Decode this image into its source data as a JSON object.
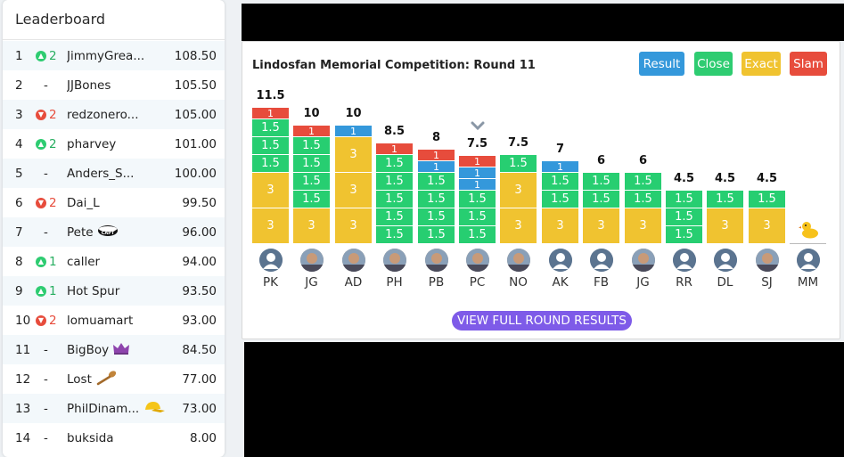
{
  "leaderboard": {
    "title": "Leaderboard",
    "rows": [
      {
        "rank": "1",
        "move": "up",
        "moveVal": "2",
        "name": "JimmyGrea...",
        "score": "108.50",
        "badge": ""
      },
      {
        "rank": "2",
        "move": "none",
        "moveVal": "-",
        "name": "JJBones",
        "score": "105.50",
        "badge": ""
      },
      {
        "rank": "3",
        "move": "down",
        "moveVal": "2",
        "name": "redzonero...",
        "score": "105.00",
        "badge": ""
      },
      {
        "rank": "4",
        "move": "up",
        "moveVal": "2",
        "name": "pharvey",
        "score": "101.00",
        "badge": ""
      },
      {
        "rank": "5",
        "move": "none",
        "moveVal": "-",
        "name": "Anders_S...",
        "score": "100.00",
        "badge": ""
      },
      {
        "rank": "6",
        "move": "down",
        "moveVal": "2",
        "name": "Dai_L",
        "score": "99.50",
        "badge": ""
      },
      {
        "rank": "7",
        "move": "none",
        "moveVal": "-",
        "name": "Pete",
        "score": "96.00",
        "badge": "captain-armband-icon"
      },
      {
        "rank": "8",
        "move": "up",
        "moveVal": "1",
        "name": "caller",
        "score": "94.00",
        "badge": ""
      },
      {
        "rank": "9",
        "move": "up",
        "moveVal": "1",
        "name": "Hot Spur",
        "score": "93.50",
        "badge": ""
      },
      {
        "rank": "10",
        "move": "down",
        "moveVal": "2",
        "name": "lomuamart",
        "score": "93.00",
        "badge": ""
      },
      {
        "rank": "11",
        "move": "none",
        "moveVal": "-",
        "name": "BigBoy",
        "score": "84.50",
        "badge": "crown-icon"
      },
      {
        "rank": "12",
        "move": "none",
        "moveVal": "-",
        "name": "Lost",
        "score": "77.00",
        "badge": "wooden-spoon-icon"
      },
      {
        "rank": "13",
        "move": "none",
        "moveVal": "-",
        "name": "PhilDinam...",
        "score": "73.00",
        "badge": "cap-icon"
      },
      {
        "rank": "14",
        "move": "none",
        "moveVal": "-",
        "name": "buksida",
        "score": "8.00",
        "badge": ""
      }
    ]
  },
  "round": {
    "title": "Lindosfan Memorial Competition: Round 11",
    "buttons": [
      {
        "label": "Result",
        "color": "#3498db"
      },
      {
        "label": "Close",
        "color": "#2ecc71"
      },
      {
        "label": "Exact",
        "color": "#f0c330"
      },
      {
        "label": "Slam",
        "color": "#e74c3c"
      }
    ],
    "colors": {
      "exact": "#f0c330",
      "close": "#27ce71",
      "result": "#3498db",
      "slam": "#e74c3c"
    },
    "players": [
      {
        "initials": "PK",
        "total": "11.5",
        "avatar": "default",
        "stack": [
          [
            "3",
            "exact"
          ],
          [
            "3",
            "exact"
          ],
          [
            "1.5",
            "close"
          ],
          [
            "1.5",
            "close"
          ],
          [
            "1.5",
            "close"
          ],
          [
            "1",
            "slam"
          ]
        ]
      },
      {
        "initials": "JG",
        "total": "10",
        "avatar": "photo",
        "stack": [
          [
            "3",
            "exact"
          ],
          [
            "1.5",
            "close"
          ],
          [
            "1.5",
            "close"
          ],
          [
            "1.5",
            "close"
          ],
          [
            "1.5",
            "close"
          ],
          [
            "1",
            "slam"
          ]
        ]
      },
      {
        "initials": "AD",
        "total": "10",
        "avatar": "photo",
        "stack": [
          [
            "3",
            "exact"
          ],
          [
            "3",
            "exact"
          ],
          [
            "3",
            "exact"
          ],
          [
            "1",
            "result"
          ]
        ]
      },
      {
        "initials": "PH",
        "total": "8.5",
        "avatar": "photo",
        "stack": [
          [
            "1.5",
            "close"
          ],
          [
            "1.5",
            "close"
          ],
          [
            "1.5",
            "close"
          ],
          [
            "1.5",
            "close"
          ],
          [
            "1.5",
            "close"
          ],
          [
            "1",
            "slam"
          ]
        ]
      },
      {
        "initials": "PB",
        "total": "8",
        "avatar": "photo",
        "stack": [
          [
            "1.5",
            "close"
          ],
          [
            "1.5",
            "close"
          ],
          [
            "1.5",
            "close"
          ],
          [
            "1.5",
            "close"
          ],
          [
            "1",
            "result"
          ],
          [
            "1",
            "slam"
          ]
        ]
      },
      {
        "initials": "PC",
        "total": "7.5",
        "avatar": "photo",
        "selected": true,
        "stack": [
          [
            "1.5",
            "close"
          ],
          [
            "1.5",
            "close"
          ],
          [
            "1.5",
            "close"
          ],
          [
            "1",
            "result"
          ],
          [
            "1",
            "result"
          ],
          [
            "1",
            "slam"
          ]
        ]
      },
      {
        "initials": "NO",
        "total": "7.5",
        "avatar": "photo",
        "stack": [
          [
            "3",
            "exact"
          ],
          [
            "3",
            "exact"
          ],
          [
            "1.5",
            "close"
          ]
        ]
      },
      {
        "initials": "AK",
        "total": "7",
        "avatar": "default",
        "stack": [
          [
            "3",
            "exact"
          ],
          [
            "1.5",
            "close"
          ],
          [
            "1.5",
            "close"
          ],
          [
            "1",
            "result"
          ]
        ]
      },
      {
        "initials": "FB",
        "total": "6",
        "avatar": "default",
        "stack": [
          [
            "3",
            "exact"
          ],
          [
            "1.5",
            "close"
          ],
          [
            "1.5",
            "close"
          ]
        ]
      },
      {
        "initials": "JG",
        "total": "6",
        "avatar": "photo",
        "stack": [
          [
            "3",
            "exact"
          ],
          [
            "1.5",
            "close"
          ],
          [
            "1.5",
            "close"
          ]
        ]
      },
      {
        "initials": "RR",
        "total": "4.5",
        "avatar": "default",
        "stack": [
          [
            "1.5",
            "close"
          ],
          [
            "1.5",
            "close"
          ],
          [
            "1.5",
            "close"
          ]
        ]
      },
      {
        "initials": "DL",
        "total": "4.5",
        "avatar": "default",
        "stack": [
          [
            "3",
            "exact"
          ],
          [
            "1.5",
            "close"
          ]
        ]
      },
      {
        "initials": "SJ",
        "total": "4.5",
        "avatar": "photo",
        "stack": [
          [
            "3",
            "exact"
          ],
          [
            "1.5",
            "close"
          ]
        ]
      },
      {
        "initials": "MM",
        "total": "",
        "avatar": "default",
        "duck": true,
        "stack": []
      }
    ],
    "view_full_label": "VIEW FULL ROUND RESULTS"
  }
}
